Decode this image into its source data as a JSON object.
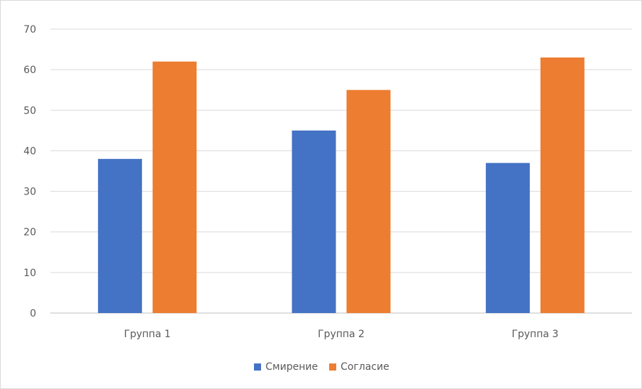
{
  "chart_data": {
    "type": "bar",
    "title": "",
    "xlabel": "",
    "ylabel": "",
    "categories": [
      "Группа 1",
      "Группа 2",
      "Группа 3"
    ],
    "series": [
      {
        "name": "Смирение",
        "values": [
          38,
          45,
          37
        ],
        "color": "#4472c4"
      },
      {
        "name": "Согласие",
        "values": [
          62,
          55,
          63
        ],
        "color": "#ed7d31"
      }
    ],
    "ylim": [
      0,
      70
    ],
    "yticks": [
      0,
      10,
      20,
      30,
      40,
      50,
      60,
      70
    ],
    "grid": true,
    "legend_position": "bottom"
  }
}
